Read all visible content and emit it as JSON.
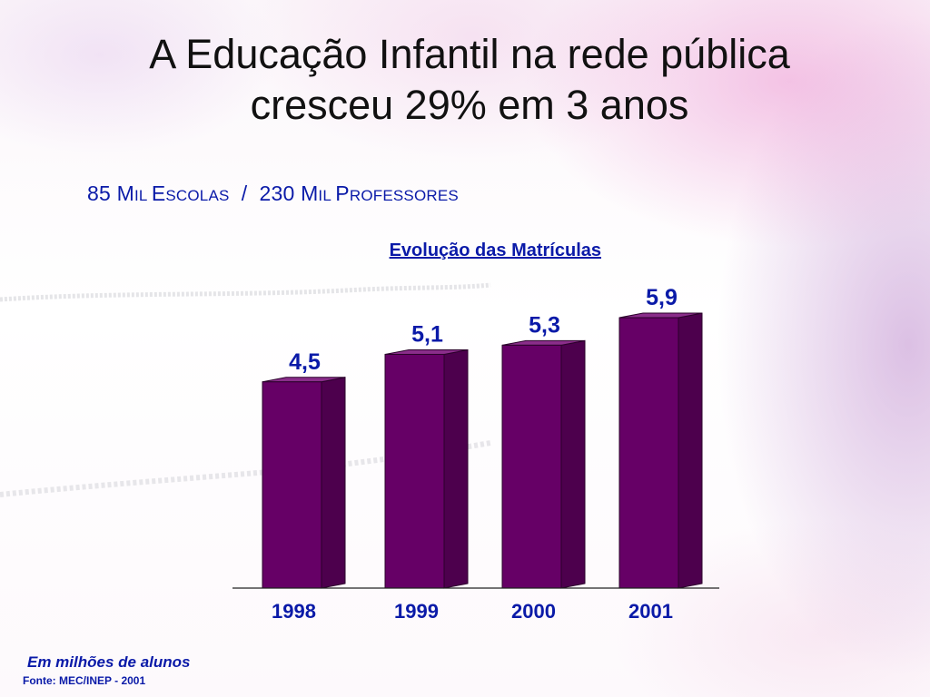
{
  "slide": {
    "title_line1": "A Educação Infantil na rede pública",
    "title_line2": "cresceu 29% em 3 anos",
    "subtitle": {
      "a_num": "85 ",
      "a_cap1": "M",
      "a_rest1": "IL ",
      "a_cap2": "E",
      "a_rest2": "SCOLAS",
      "sep": "  /  ",
      "b_num": "230 ",
      "b_cap1": "M",
      "b_rest1": "IL ",
      "b_cap2": "P",
      "b_rest2": "ROFESSORES"
    },
    "note": "Em milhões de alunos",
    "source": "Fonte: MEC/INEP - 2001"
  },
  "chart_data": {
    "type": "bar",
    "title": "Evolução das Matrículas",
    "categories": [
      "1998",
      "1999",
      "2000",
      "2001"
    ],
    "values": [
      4.5,
      5.1,
      5.3,
      5.9
    ],
    "value_labels": [
      "4,5",
      "5,1",
      "5,3",
      "5,9"
    ],
    "xlabel": "",
    "ylabel": "",
    "style": "3d-column",
    "grid": false,
    "legend": "none"
  },
  "colors": {
    "bar_front": "#660066",
    "bar_side": "#4d004d",
    "bar_top": "#8a2d8a",
    "label_text": "#0a1aa8"
  }
}
